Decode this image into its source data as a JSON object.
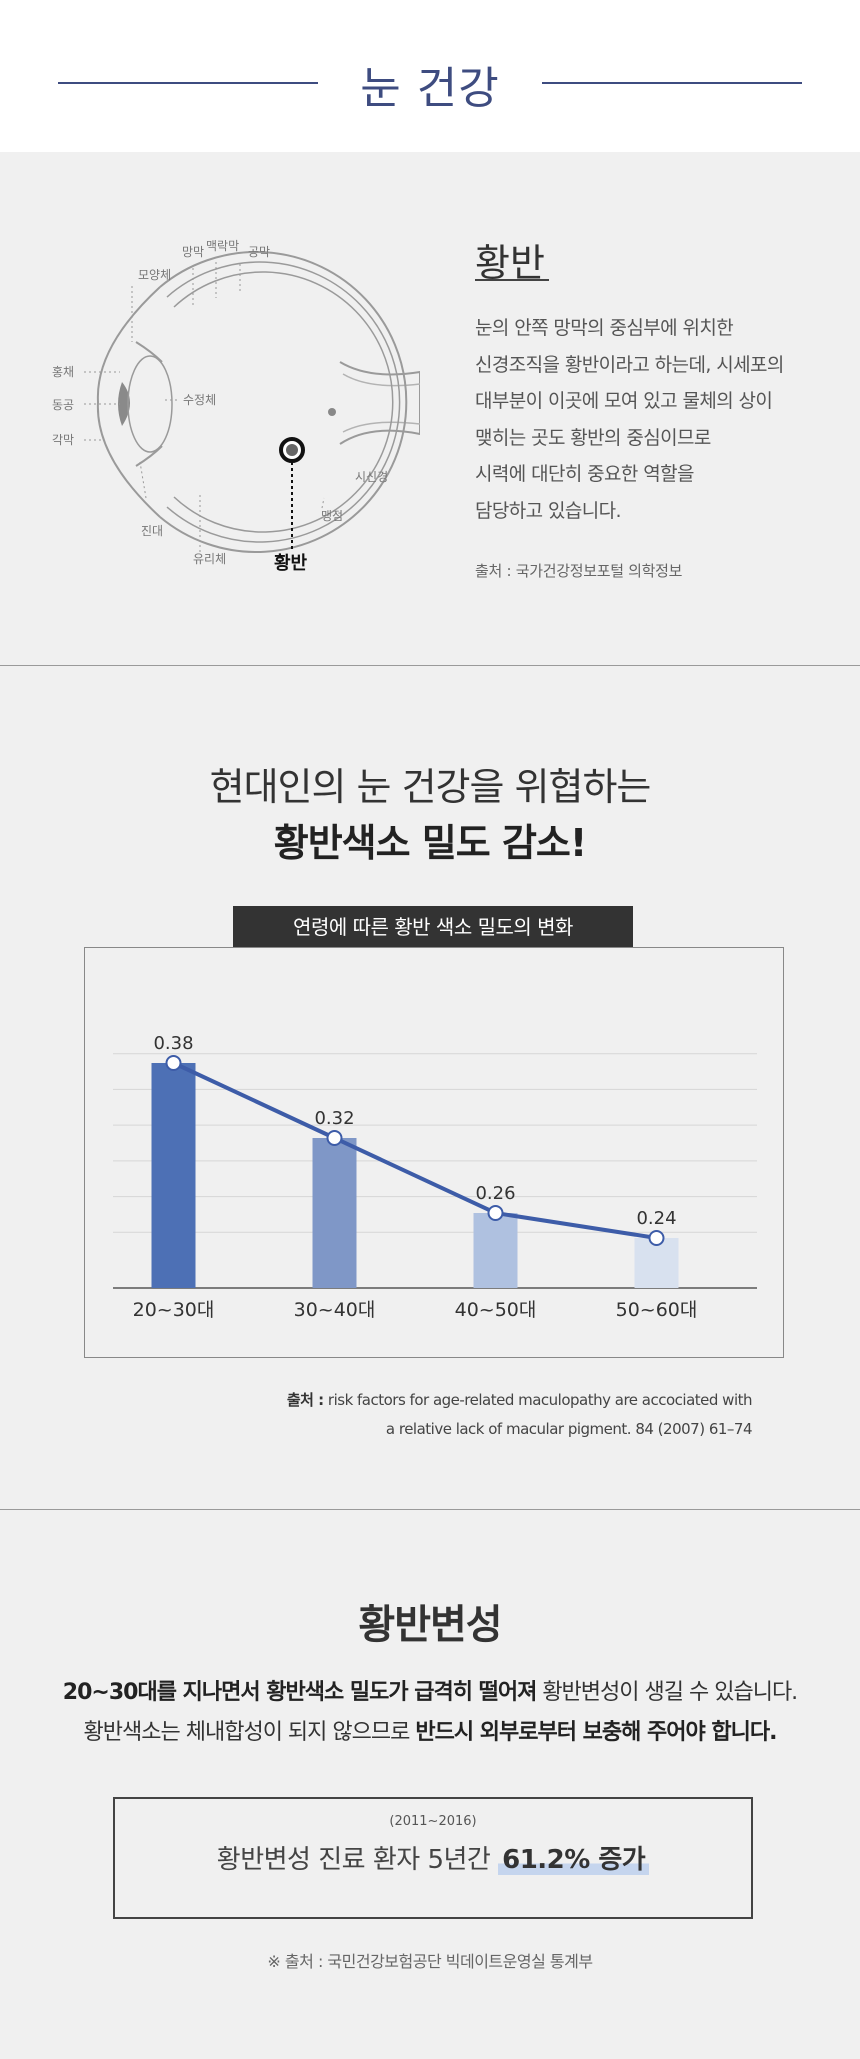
{
  "header": {
    "title": "눈 건강"
  },
  "macula": {
    "title": "황반",
    "description_lines": [
      "눈의 안쪽 망막의 중심부에 위치한",
      "신경조직을 황반이라고 하는데, 시세포의",
      "대부분이 이곳에 모여 있고 물체의 상이",
      "맺히는 곳도 황반의 중심이므로",
      "시력에 대단히 중요한 역할을",
      "담당하고 있습니다."
    ],
    "source": "출처 : 국가건강정보포털 의학정보",
    "eye_labels": {
      "retina": "망막",
      "choroid": "맥락막",
      "sclera": "공막",
      "ciliary": "모양체",
      "iris": "홍채",
      "pupil": "동공",
      "cornea": "각막",
      "lens": "수정체",
      "zonule": "진대",
      "vitreous": "유리체",
      "macula": "황반",
      "blindspot": "맹점",
      "optic_nerve": "시신경"
    }
  },
  "threat": {
    "line1": "현대인의 눈 건강을 위협하는",
    "line2": "황반색소 밀도 감소!"
  },
  "chart_data": {
    "type": "bar",
    "title": "연령에 따른 황반 색소 밀도의 변화",
    "categories": [
      "20~30대",
      "30~40대",
      "40~50대",
      "50~60대"
    ],
    "values": [
      0.38,
      0.32,
      0.26,
      0.24
    ],
    "data_labels": [
      "0.38",
      "0.32",
      "0.26",
      "0.24"
    ],
    "ylim": [
      0.2,
      0.4
    ],
    "grid": true,
    "trend_line": true,
    "colors": [
      "#4d70b5",
      "#7f97c7",
      "#afc1e0",
      "#d8e1ef"
    ],
    "line_color": "#3d5ca8"
  },
  "chart_source": {
    "label": "출처 :",
    "line1": "risk factors for age-related maculopathy are accociated with",
    "line2": "a relative lack of macular pigment. 84 (2007) 61–74"
  },
  "degeneration": {
    "title": "황반변성",
    "line1_pre": "20~30대를 지나면서 황반색소 밀도가 급격히 떨어져",
    "line1_post": " 황반변성이 생길 수 있습니다.",
    "line2_pre": "황반색소는 체내합성이 되지 않으므로 ",
    "line2_post": "반드시 외부로부터 보충해 주어야 합니다.",
    "stat_years": "(2011~2016)",
    "stat_text": "황반변성 진료 환자 5년간 ",
    "stat_highlight": "61.2% 증가",
    "footnote": "※ 출처 : 국민건강보험공단 빅데이트운영실 통계부"
  }
}
